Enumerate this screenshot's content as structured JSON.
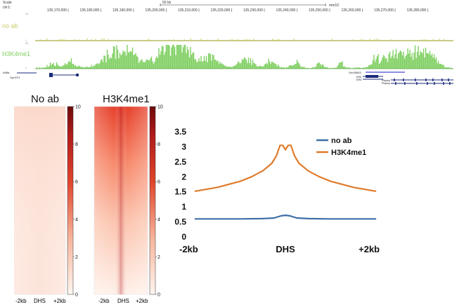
{
  "browser": {
    "scale_label": "Scale",
    "chrom_label": "chr1:",
    "scale_bar_label": "50 kb",
    "assembly": "mm10",
    "coords": [
      "135,170,000",
      "135,180,000",
      "135,190,000",
      "135,200,000",
      "135,210,000",
      "135,220,000",
      "135,230,000",
      "135,240,000",
      "135,250,000",
      "135,260,000",
      "135,270,000",
      "135,280,000"
    ],
    "tracks": [
      {
        "label": "no ab",
        "color": "#c8cc6a",
        "scale_top": "30",
        "scale_bottom": "1"
      },
      {
        "label": "H3K4me1",
        "color": "#7fcf61",
        "scale_top": "30",
        "scale_bottom": "1"
      }
    ],
    "genes": [
      "Arl8a",
      "Gpr37l1",
      "Gm26843",
      "Elf3",
      "Elf3",
      "Rnpep",
      "Rnpep"
    ],
    "bg_color": "#ffffff"
  },
  "heatmaps": [
    {
      "title": "No ab",
      "xticks": [
        "-2kb",
        "DHS",
        "+2kb"
      ],
      "colorbar_ticks": [
        "10",
        "8",
        "6",
        "4",
        "2",
        "0"
      ],
      "intensity": 0.05
    },
    {
      "title": "H3K4me1",
      "xticks": [
        "-2kb",
        "DHS",
        "+2kb"
      ],
      "colorbar_ticks": [
        "10",
        "8",
        "6",
        "4",
        "2",
        "0"
      ],
      "intensity": 1.0
    }
  ],
  "colors": {
    "no_ab": "#3c6fa6",
    "h3k4me1": "#e07b2b",
    "heat_dark": "#7a0c0c",
    "heat_light": "#fff3ee"
  },
  "chart_data": {
    "type": "line",
    "title": "",
    "xlabel": "",
    "ylabel": "",
    "x_tick_labels": [
      "-2kb",
      "DHS",
      "+2kb"
    ],
    "x_positions": [
      -2,
      0,
      2
    ],
    "xlim": [
      -2,
      2
    ],
    "ylim": [
      0,
      3.5
    ],
    "yticks": [
      "3.5",
      "3",
      "2.5",
      "2",
      "1.5",
      "1",
      "0.5",
      "0"
    ],
    "legend_position": "top-right",
    "grid": false,
    "series": [
      {
        "name": "no ab",
        "color": "#3c6fa6",
        "x": [
          -2,
          -1.5,
          -1,
          -0.5,
          -0.25,
          -0.1,
          0,
          0.1,
          0.25,
          0.5,
          1,
          1.5,
          2
        ],
        "y": [
          0.6,
          0.6,
          0.6,
          0.61,
          0.63,
          0.7,
          0.72,
          0.7,
          0.63,
          0.61,
          0.6,
          0.6,
          0.6
        ]
      },
      {
        "name": "H3K4me1",
        "color": "#e07b2b",
        "x": [
          -2,
          -1.5,
          -1,
          -0.75,
          -0.5,
          -0.3,
          -0.2,
          -0.12,
          -0.06,
          0,
          0.06,
          0.12,
          0.2,
          0.3,
          0.5,
          0.75,
          1,
          1.5,
          2
        ],
        "y": [
          1.52,
          1.65,
          1.85,
          2.0,
          2.2,
          2.45,
          2.7,
          3.05,
          3.05,
          2.9,
          3.05,
          3.05,
          2.7,
          2.45,
          2.2,
          2.0,
          1.85,
          1.65,
          1.52
        ]
      }
    ]
  }
}
